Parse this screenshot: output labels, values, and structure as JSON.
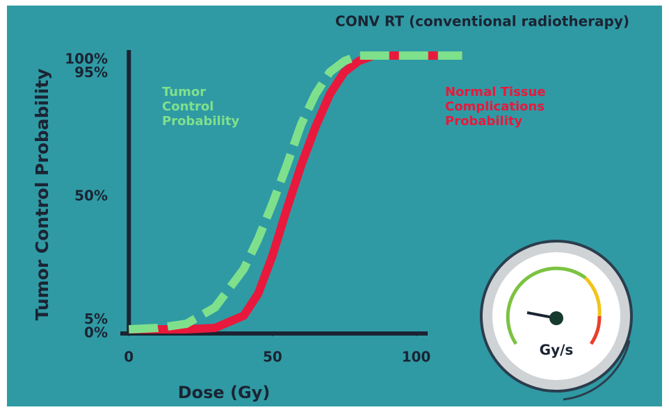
{
  "chart_data": {
    "type": "line",
    "title": "CONV RT (conventional radiotherapy)",
    "xlabel": "Dose (Gy)",
    "ylabel": "Tumor Control Probability",
    "x": [
      0,
      10,
      20,
      30,
      40,
      45,
      50,
      55,
      60,
      65,
      70,
      75,
      80,
      85,
      90,
      100,
      116
    ],
    "series": [
      {
        "name": "Tumor Control Probability",
        "color": "#7fe08c",
        "dashed": true,
        "values": [
          0,
          0.5,
          2,
          8,
          22,
          33,
          46,
          60,
          75,
          86,
          94,
          98,
          100,
          100,
          100,
          100,
          100
        ]
      },
      {
        "name": "Normal Tissue Complications Probability",
        "color": "#e8193c",
        "dashed": false,
        "values": [
          0,
          0,
          0,
          0.5,
          5,
          13,
          27,
          44,
          60,
          74,
          86,
          94,
          98,
          100,
          100,
          100,
          100
        ]
      }
    ],
    "xlim": [
      -2,
      104
    ],
    "ylim": [
      0,
      100
    ],
    "xticks": [
      0,
      50,
      100
    ],
    "yticks": [
      {
        "value": 0,
        "label": "0%"
      },
      {
        "value": 5,
        "label": "5%"
      },
      {
        "value": 50,
        "label": "50%"
      },
      {
        "value": 95,
        "label": "95%"
      },
      {
        "value": 100,
        "label": "100%"
      }
    ],
    "gauge_label": "Gy/s"
  }
}
